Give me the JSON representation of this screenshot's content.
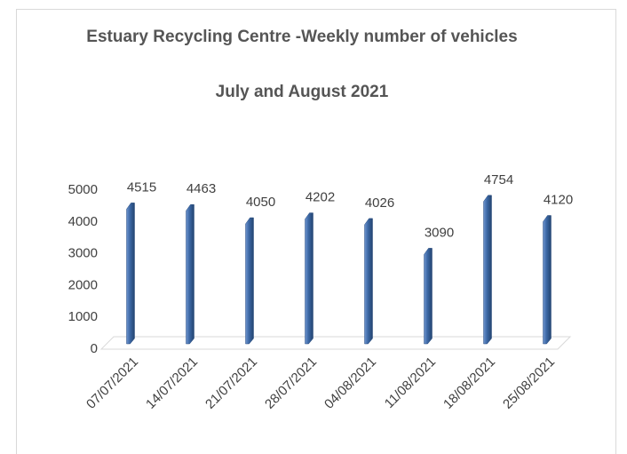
{
  "chart_data": {
    "type": "bar",
    "title": "Estuary Recycling Centre -Weekly number of vehicles",
    "subtitle": "July and August 2021",
    "categories": [
      "07/07/2021",
      "14/07/2021",
      "21/07/2021",
      "28/07/2021",
      "04/08/2021",
      "11/08/2021",
      "18/08/2021",
      "25/08/2021"
    ],
    "values": [
      4515,
      4463,
      4050,
      4202,
      4026,
      3090,
      4754,
      4120
    ],
    "color": "#3b66a3",
    "ylim": [
      0,
      5000
    ],
    "yticks": [
      0,
      1000,
      2000,
      3000,
      4000,
      5000
    ],
    "grid": false
  }
}
